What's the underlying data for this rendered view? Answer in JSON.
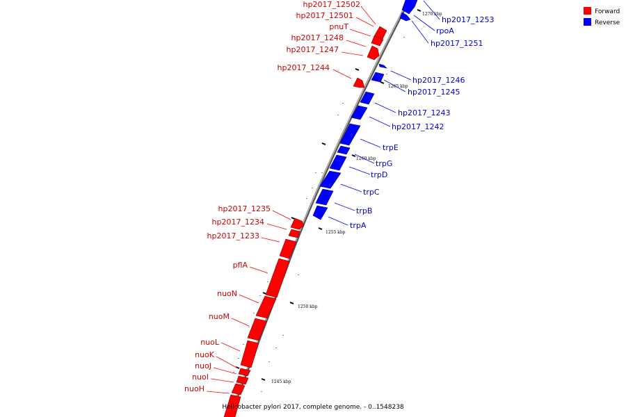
{
  "caption": "Helicobacter pylori 2017, complete genome. - 0..1548238",
  "legend": [
    {
      "label": "Forward",
      "color": "#ff0000"
    },
    {
      "label": "Reverse",
      "color": "#0000ff"
    }
  ],
  "ticks": [
    "1245 kbp",
    "1250 kbp",
    "1255 kbp",
    "1260 kbp",
    "1265 kbp",
    "1270 kbp"
  ],
  "colors": {
    "forward": "#ff0000",
    "reverse": "#0000ff",
    "forward_label": "#cc0000",
    "reverse_label": "#0000cc",
    "backbone": "#999999"
  },
  "forward_genes": [
    "hp2017_12502",
    "hp2017_12501",
    "pnuT",
    "hp2017_1248",
    "hp2017_1247",
    "hp2017_1244",
    "hp2017_1235",
    "hp2017_1234",
    "hp2017_1233",
    "pflA",
    "nuoN",
    "nuoM",
    "nuoL",
    "nuoK",
    "nuoJ",
    "nuoI",
    "nuoH"
  ],
  "reverse_genes": [
    "hp2017_1253",
    "rpoA",
    "hp2017_1251",
    "hp2017_1246",
    "hp2017_1245",
    "hp2017_1243",
    "hp2017_1242",
    "trpE",
    "trpG",
    "trpD",
    "trpC",
    "trpB",
    "trpA"
  ]
}
